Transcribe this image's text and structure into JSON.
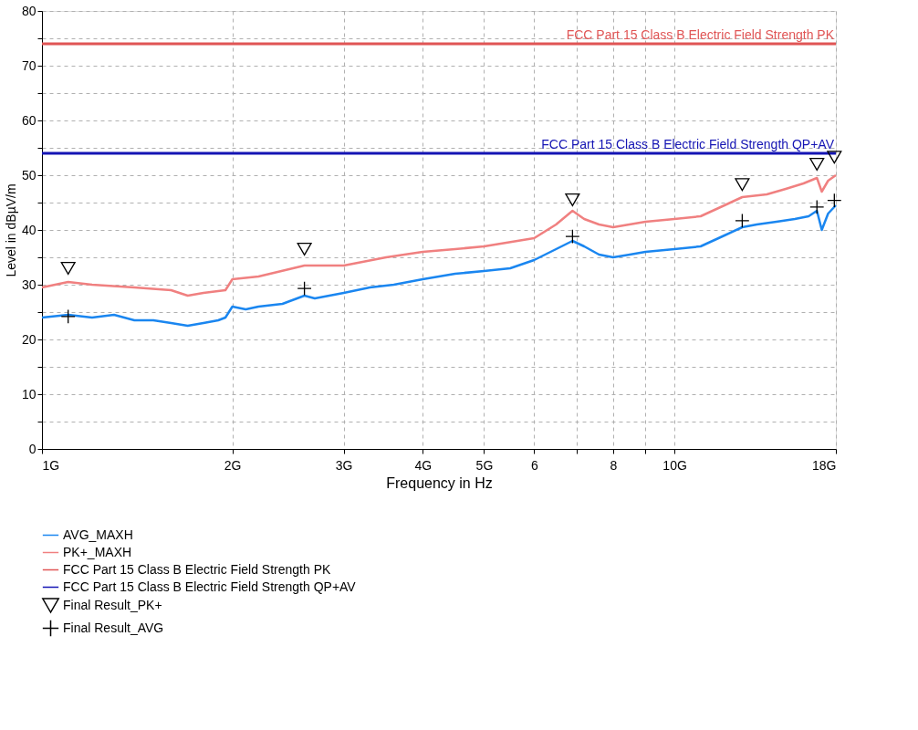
{
  "chart_data": {
    "type": "line",
    "xlabel": "Frequency in Hz",
    "ylabel": "Level in dBµV/m",
    "log": "x",
    "grid": true,
    "legend": "bottom left",
    "line_style": "solid",
    "xlim": [
      1,
      18
    ],
    "ylim": [
      0,
      80
    ],
    "xticks": [
      {
        "value": 1,
        "label": "1G"
      },
      {
        "value": 2,
        "label": "2G"
      },
      {
        "value": 3,
        "label": "3G"
      },
      {
        "value": 4,
        "label": "4G"
      },
      {
        "value": 5,
        "label": "5G"
      },
      6,
      {
        "value": 7,
        "label": null
      },
      8,
      {
        "value": 9,
        "label": null
      },
      {
        "value": 10,
        "label": "10G"
      },
      {
        "value": 18,
        "label": "18G"
      }
    ],
    "yticks": [
      0,
      {
        "value": 5,
        "label": null
      },
      10,
      {
        "value": 15,
        "label": null
      },
      20,
      {
        "value": 25,
        "label": null
      },
      30,
      {
        "value": 35,
        "label": null
      },
      40,
      {
        "value": 45,
        "label": null
      },
      50,
      {
        "value": 55,
        "label": null
      },
      60,
      {
        "value": 65,
        "label": null
      },
      70,
      {
        "value": 75,
        "label": null
      },
      80
    ],
    "series": [
      {
        "name": "AVG_MAXH",
        "color": "#1a86f0",
        "x": [
          1,
          1.1,
          1.2,
          1.3,
          1.4,
          1.5,
          1.6,
          1.7,
          1.8,
          1.9,
          1.95,
          2,
          2.1,
          2.2,
          2.4,
          2.6,
          2.7,
          3,
          3.3,
          3.6,
          4,
          4.5,
          5,
          5.5,
          6,
          6.5,
          6.9,
          7.2,
          7.6,
          8,
          8.5,
          9,
          10,
          11,
          12,
          12.8,
          13.5,
          14.5,
          15.5,
          16.3,
          16.8,
          17.1,
          17.5,
          18
        ],
        "values": [
          24,
          24.5,
          24,
          24.5,
          23.5,
          23.5,
          23,
          22.5,
          23,
          23.5,
          24,
          26,
          25.5,
          26,
          26.5,
          28,
          27.5,
          28.5,
          29.5,
          30,
          31,
          32,
          32.5,
          33,
          34.5,
          36.5,
          38,
          37,
          35.5,
          35,
          35.5,
          36,
          36.5,
          37,
          39,
          40.5,
          41,
          41.5,
          42,
          42.5,
          43.5,
          40,
          43,
          44.5
        ]
      },
      {
        "name": "PK+_MAXH",
        "color": "#f08080",
        "x": [
          1,
          1.1,
          1.2,
          1.4,
          1.6,
          1.7,
          1.8,
          1.95,
          2,
          2.2,
          2.6,
          3,
          3.5,
          4,
          4.5,
          5,
          6,
          6.5,
          6.9,
          7.2,
          7.6,
          8,
          9,
          10,
          11,
          12,
          12.8,
          14,
          15,
          16,
          16.8,
          17.1,
          17.5,
          18
        ],
        "values": [
          29.5,
          30.5,
          30,
          29.5,
          29,
          28,
          28.5,
          29,
          31,
          31.5,
          33.5,
          33.5,
          35,
          36,
          36.5,
          37,
          38.5,
          41,
          43.5,
          42,
          41,
          40.5,
          41.5,
          42,
          42.5,
          44.5,
          46,
          46.5,
          47.5,
          48.5,
          49.5,
          47,
          49,
          50
        ]
      },
      {
        "name": "Final Result_PK+",
        "type": "scatter",
        "marker": "triangle",
        "color": "#000000",
        "x": [
          1.1,
          2.6,
          6.9,
          12.8,
          16.8,
          17.9
        ],
        "values": [
          33,
          36.5,
          45.5,
          48.3,
          52,
          53.3
        ]
      },
      {
        "name": "Final Result_AVG",
        "type": "scatter",
        "marker": "cross",
        "color": "#000000",
        "x": [
          1.1,
          2.6,
          6.9,
          12.8,
          16.8,
          17.9
        ],
        "values": [
          24.2,
          29.3,
          38.8,
          41.7,
          44.2,
          45.4
        ]
      }
    ],
    "ref_lines": [
      {
        "axis": "y",
        "value": 74,
        "label": "FCC Part 15 Class B Electric Field Strength PK",
        "color": "#e05555"
      },
      {
        "axis": "y",
        "value": 54,
        "label": "FCC Part 15 Class B Electric Field Strength QP+AV",
        "color": "#1414b4"
      }
    ]
  }
}
